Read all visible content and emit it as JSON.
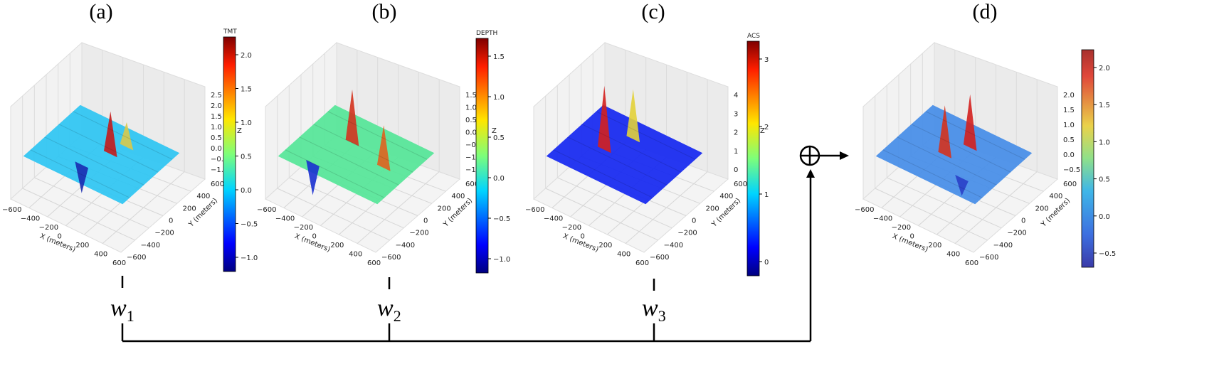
{
  "panels": [
    {
      "label": "(a)",
      "colorbar": {
        "title": "TMT",
        "ticks": [
          "2.0",
          "1.5",
          "1.0",
          "0.5",
          "0.0",
          "−0.5",
          "−1.0"
        ]
      },
      "z_ticks": [
        "2.5",
        "2.0",
        "1.5",
        "1.0",
        "0.5",
        "0.0",
        "−0.5",
        "−1.0"
      ]
    },
    {
      "label": "(b)",
      "colorbar": {
        "title": "DEPTH",
        "ticks": [
          "1.5",
          "1.0",
          "0.5",
          "0.0",
          "−0.5",
          "−1.0"
        ]
      },
      "z_ticks": [
        "1.5",
        "1.0",
        "0.5",
        "0.0",
        "−0.5",
        "−1.0",
        "−1.5"
      ]
    },
    {
      "label": "(c)",
      "colorbar": {
        "title": "ACS",
        "ticks": [
          "3",
          "2",
          "1",
          "0"
        ]
      },
      "z_ticks": [
        "4",
        "3",
        "2",
        "1",
        "0"
      ]
    },
    {
      "label": "(d)",
      "colorbar": {
        "title": "",
        "ticks": [
          "2.0",
          "1.5",
          "1.0",
          "0.5",
          "0.0",
          "−0.5"
        ]
      },
      "z_ticks": [
        "2.0",
        "1.5",
        "1.0",
        "0.5",
        "0.0",
        "−0.5"
      ]
    }
  ],
  "axes": {
    "x_label": "X (meters)",
    "y_label": "Y (meters)",
    "z_label": "Z",
    "x_ticks": [
      "−600",
      "−400",
      "−200",
      "0",
      "200",
      "400",
      "600"
    ],
    "y_ticks": [
      "−600",
      "−400",
      "−200",
      "0",
      "200",
      "400",
      "600"
    ]
  },
  "weights": [
    {
      "symbol": "w",
      "index": "1"
    },
    {
      "symbol": "w",
      "index": "2"
    },
    {
      "symbol": "w",
      "index": "3"
    }
  ],
  "operator": "⊕",
  "chart_data": [
    {
      "type": "surface",
      "panel": "(a)",
      "colorbar_label": "TMT",
      "colorscale": "jet",
      "zlim": [
        -1.2,
        2.5
      ],
      "x_range": [
        -600,
        600
      ],
      "y_range": [
        -600,
        600
      ]
    },
    {
      "type": "surface",
      "panel": "(b)",
      "colorbar_label": "DEPTH",
      "colorscale": "jet",
      "zlim": [
        -1.5,
        1.6
      ],
      "x_range": [
        -600,
        600
      ],
      "y_range": [
        -600,
        600
      ]
    },
    {
      "type": "surface",
      "panel": "(c)",
      "colorbar_label": "ACS",
      "colorscale": "jet",
      "zlim": [
        -0.3,
        4
      ],
      "x_range": [
        -600,
        600
      ],
      "y_range": [
        -600,
        600
      ]
    },
    {
      "type": "surface",
      "panel": "(d)",
      "colorscale": "jet",
      "zlim": [
        -0.7,
        2.2
      ],
      "x_range": [
        -600,
        600
      ],
      "y_range": [
        -600,
        600
      ]
    }
  ]
}
